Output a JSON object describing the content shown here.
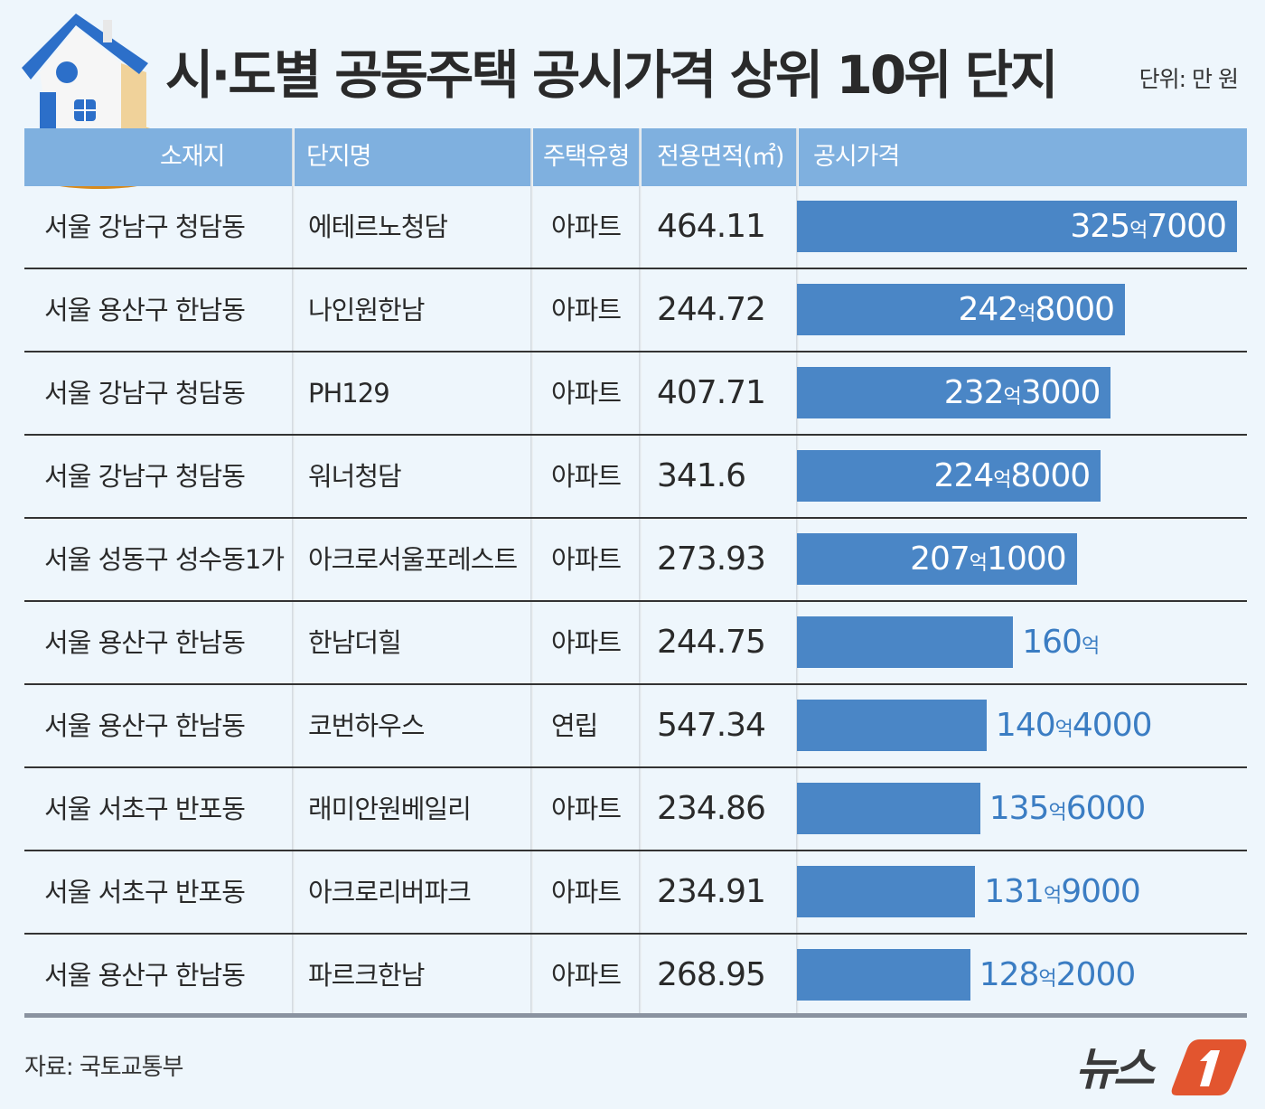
{
  "header": {
    "title": "시·도별 공동주택 공시가격 상위 10위 단지",
    "unit": "단위: 만 원"
  },
  "columns": [
    "소재지",
    "단지명",
    "주택유형",
    "전용면적(㎡)",
    "공시가격"
  ],
  "rows": [
    {
      "location": "서울 강남구 청담동",
      "name": "에테르노청담",
      "type": "아파트",
      "area": "464.11",
      "price_num": "325",
      "price_unit": "억",
      "price_rest": "7000"
    },
    {
      "location": "서울 용산구 한남동",
      "name": "나인원한남",
      "type": "아파트",
      "area": "244.72",
      "price_num": "242",
      "price_unit": "억",
      "price_rest": "8000"
    },
    {
      "location": "서울 강남구 청담동",
      "name": "PH129",
      "type": "아파트",
      "area": "407.71",
      "price_num": "232",
      "price_unit": "억",
      "price_rest": "3000"
    },
    {
      "location": "서울 강남구 청담동",
      "name": "워너청담",
      "type": "아파트",
      "area": "341.6",
      "price_num": "224",
      "price_unit": "억",
      "price_rest": "8000"
    },
    {
      "location": "서울 성동구 성수동1가",
      "name": "아크로서울포레스트",
      "type": "아파트",
      "area": "273.93",
      "price_num": "207",
      "price_unit": "억",
      "price_rest": "1000"
    },
    {
      "location": "서울 용산구 한남동",
      "name": "한남더힐",
      "type": "아파트",
      "area": "244.75",
      "price_num": "160",
      "price_unit": "억",
      "price_rest": ""
    },
    {
      "location": "서울 용산구 한남동",
      "name": "코번하우스",
      "type": "연립",
      "area": "547.34",
      "price_num": "140",
      "price_unit": "억",
      "price_rest": "4000"
    },
    {
      "location": "서울 서초구 반포동",
      "name": "래미안원베일리",
      "type": "아파트",
      "area": "234.86",
      "price_num": "135",
      "price_unit": "억",
      "price_rest": "6000"
    },
    {
      "location": "서울 서초구 반포동",
      "name": "아크로리버파크",
      "type": "아파트",
      "area": "234.91",
      "price_num": "131",
      "price_unit": "억",
      "price_rest": "9000"
    },
    {
      "location": "서울 용산구 한남동",
      "name": "파르크한남",
      "type": "아파트",
      "area": "268.95",
      "price_num": "128",
      "price_unit": "억",
      "price_rest": "2000"
    }
  ],
  "chart_data": {
    "type": "bar",
    "orientation": "horizontal",
    "title": "시·도별 공동주택 공시가격 상위 10위 단지",
    "unit": "단위: 만 원",
    "categories": [
      "에테르노청담",
      "나인원한남",
      "PH129",
      "워너청담",
      "아크로서울포레스트",
      "한남더힐",
      "코번하우스",
      "래미안원베일리",
      "아크로리버파크",
      "파르크한남"
    ],
    "values": [
      3257000,
      2428000,
      2323000,
      2248000,
      2071000,
      1600000,
      1404000,
      1356000,
      1319000,
      1282000
    ],
    "data_labels": [
      "325억7000",
      "242억8000",
      "232억3000",
      "224억8000",
      "207억1000",
      "160억",
      "140억4000",
      "135억6000",
      "131억9000",
      "128억2000"
    ],
    "xlim": [
      0,
      3257000
    ],
    "grid": false
  },
  "colors": {
    "background": "#eef6fc",
    "header": "#7fb0df",
    "bar": "#4a86c6",
    "label_outside": "#3b7dc3",
    "brand": "#e2552f"
  },
  "footer": {
    "source": "자료: 국토교통부",
    "brand": "뉴스1"
  }
}
